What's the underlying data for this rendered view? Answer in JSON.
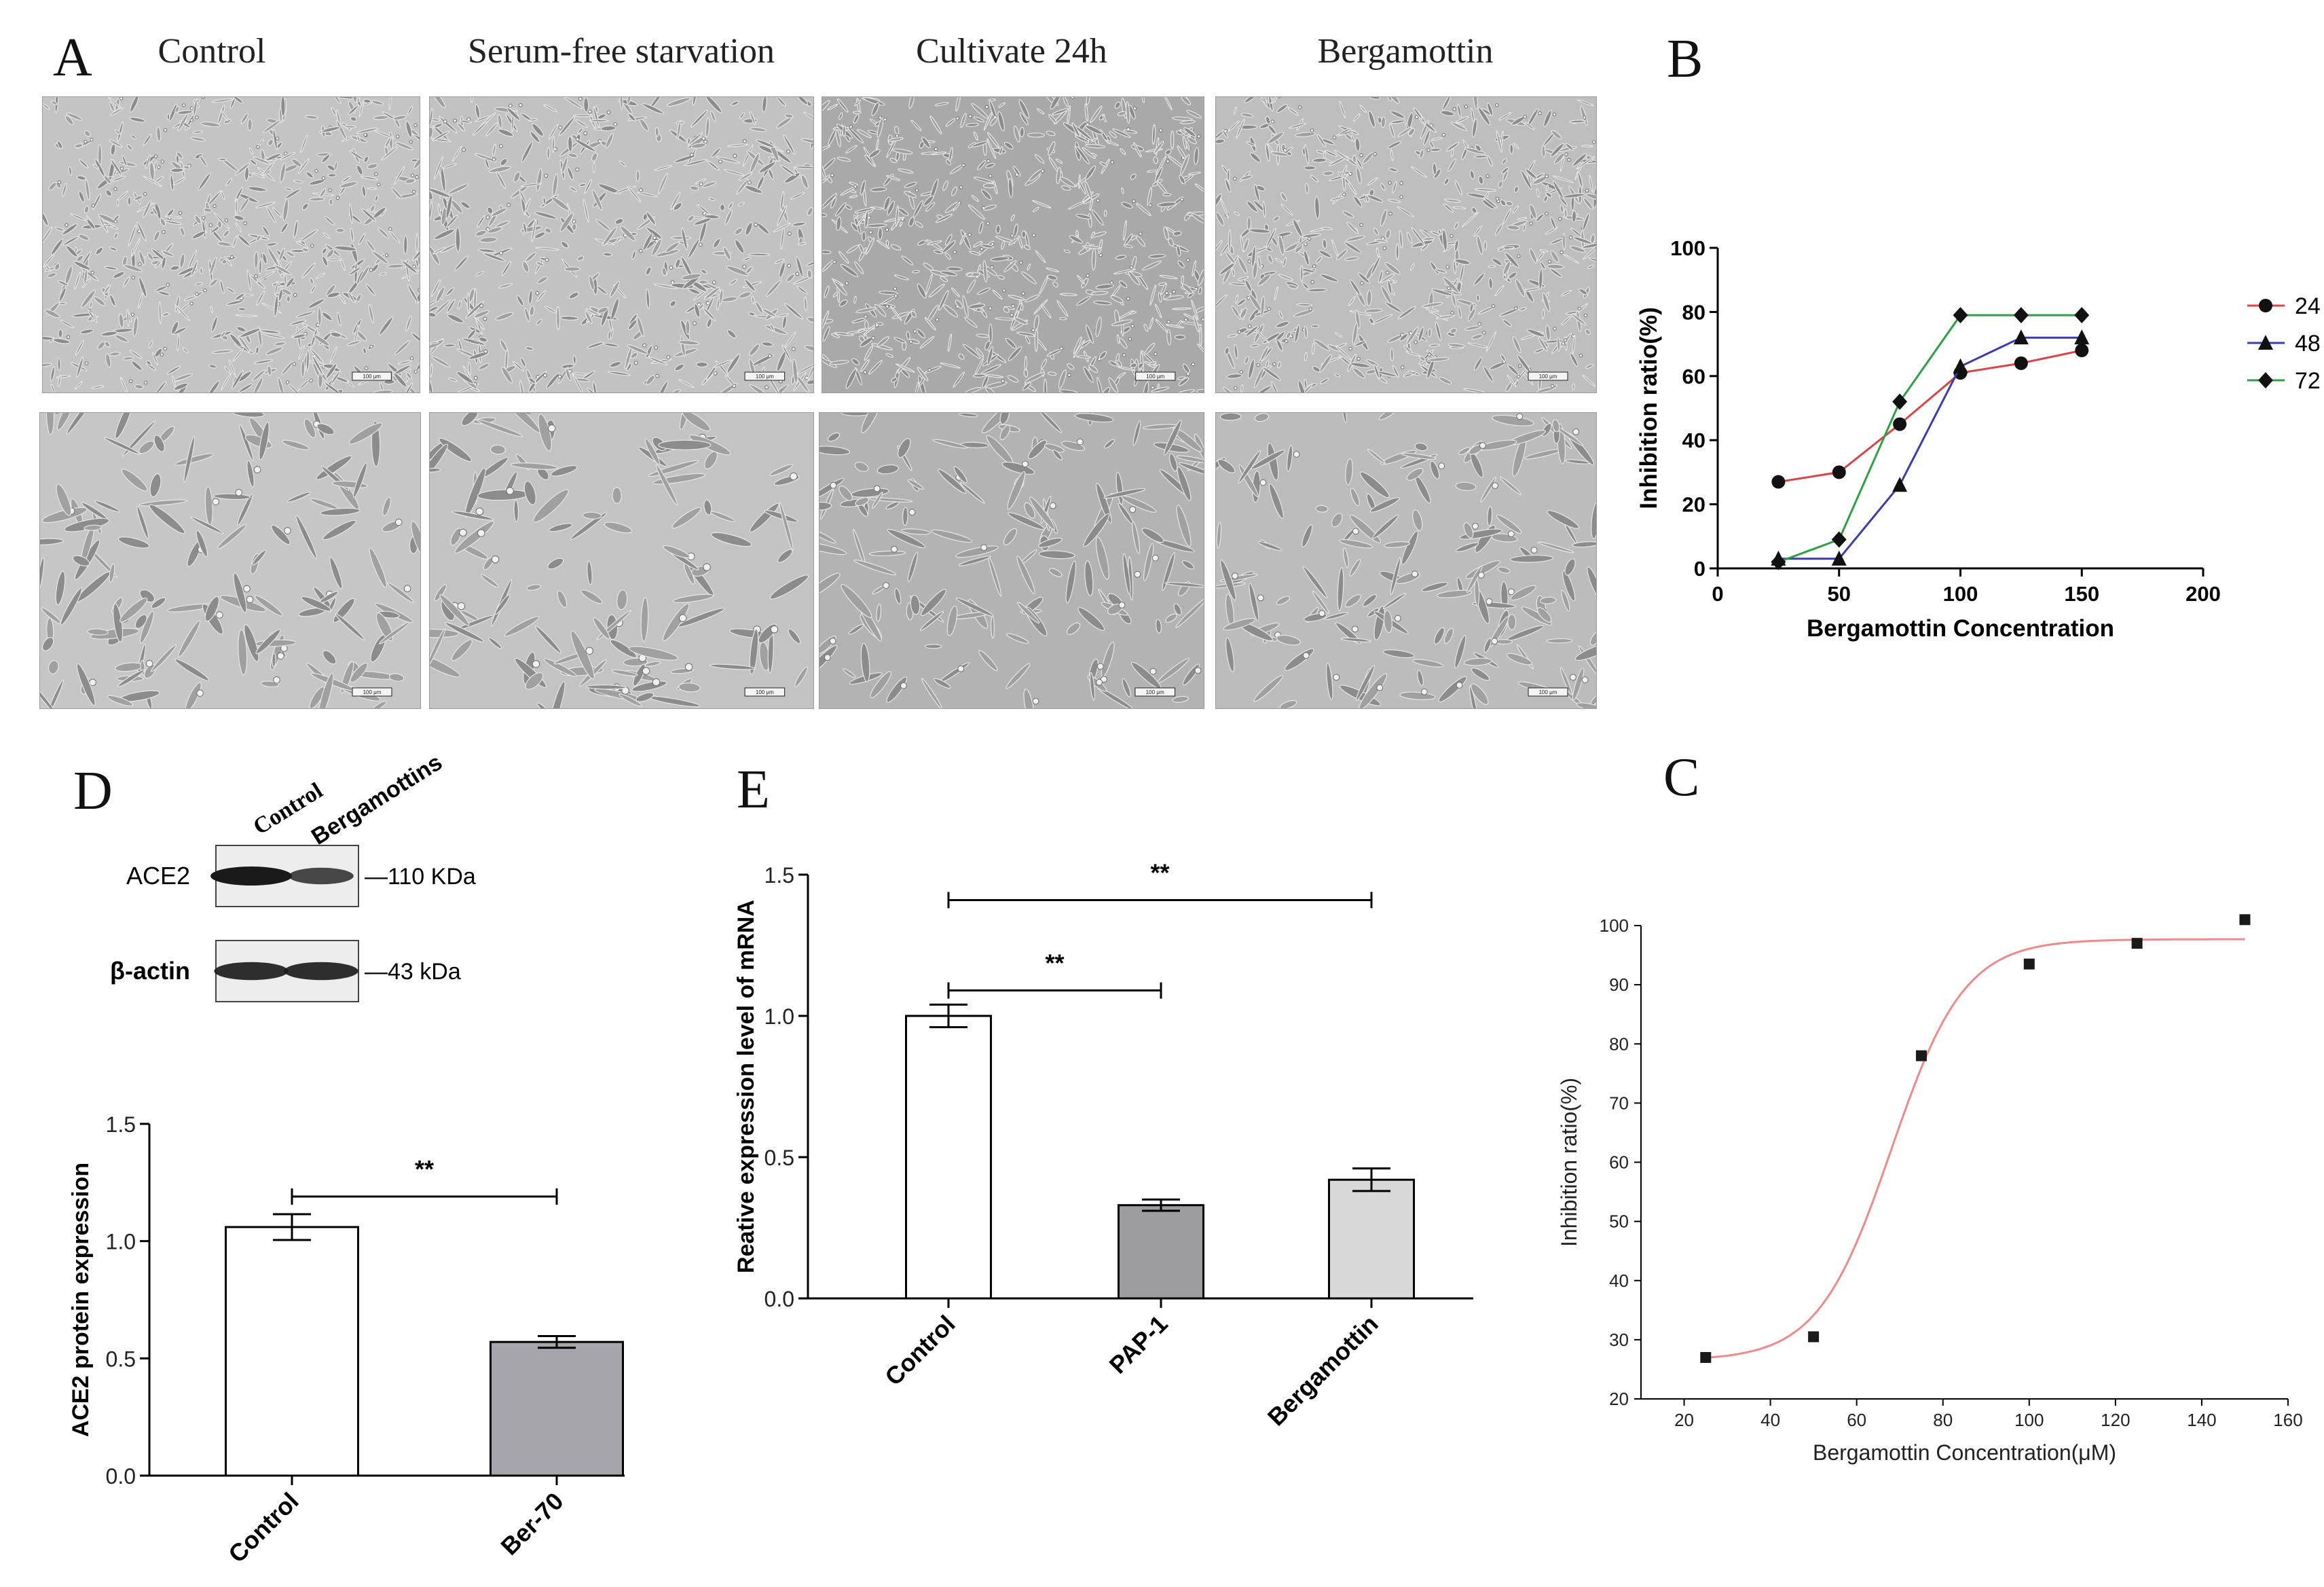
{
  "panel_letters": {
    "a": "A",
    "b": "B",
    "c": "C",
    "d": "D",
    "e": "E"
  },
  "panel_a": {
    "column_titles": [
      "Control",
      "Serum-free starvation",
      "Cultivate 24h",
      "Bergamottin"
    ],
    "scale_bar_label": "100 μm"
  },
  "western_blot": {
    "lane_labels": [
      "Control",
      "Bergamottins"
    ],
    "rows": [
      {
        "name": "ACE2",
        "size_label": "—110 KDa",
        "band_intensity": [
          1.0,
          0.55
        ]
      },
      {
        "name": "β-actin",
        "size_label": "—43 kDa",
        "band_intensity": [
          0.8,
          0.8
        ]
      }
    ]
  },
  "chart_data": [
    {
      "panel": "B",
      "type": "line",
      "xlabel": "Bergamottin Concentration",
      "ylabel": "Inhibition ratio(%)",
      "xlim": [
        0,
        200
      ],
      "ylim": [
        0,
        100
      ],
      "xticks": [
        0,
        50,
        100,
        150,
        200
      ],
      "yticks": [
        0,
        20,
        40,
        60,
        80,
        100
      ],
      "legend_position": "right",
      "series": [
        {
          "name": "24",
          "color": "#d94545",
          "marker": "circle",
          "x": [
            25,
            50,
            75,
            100,
            125,
            150
          ],
          "y": [
            27,
            30,
            45,
            61,
            64,
            68
          ]
        },
        {
          "name": "48",
          "color": "#3b3bb0",
          "marker": "triangle",
          "x": [
            25,
            50,
            75,
            100,
            125,
            150
          ],
          "y": [
            3,
            3,
            26,
            63,
            72,
            72
          ]
        },
        {
          "name": "72",
          "color": "#2ea043",
          "marker": "diamond",
          "x": [
            25,
            50,
            75,
            100,
            125,
            150
          ],
          "y": [
            2,
            9,
            52,
            79,
            79,
            79
          ]
        }
      ]
    },
    {
      "panel": "C",
      "type": "scatter",
      "xlabel": "Bergamottin Concentration(μM)",
      "ylabel": "Inhibition ratio(%)",
      "xlim": [
        10,
        160
      ],
      "ylim": [
        20,
        100
      ],
      "xticks": [
        20,
        40,
        60,
        80,
        100,
        120,
        140,
        160
      ],
      "yticks": [
        20,
        30,
        40,
        50,
        60,
        70,
        80,
        90,
        100
      ],
      "points": {
        "x": [
          25,
          50,
          75,
          100,
          125,
          150
        ],
        "y": [
          27,
          30.5,
          78,
          93.5,
          97,
          101
        ]
      },
      "fit": {
        "color": "#f08a8a",
        "model": "logistic",
        "bottom": 26.5,
        "top": 97.7,
        "x50": 68,
        "slope": 8.5
      }
    },
    {
      "panel": "D",
      "type": "bar",
      "ylabel": "ACE2  protein expression",
      "ylim": [
        0,
        1.5
      ],
      "yticks": [
        "0.0",
        "0.5",
        "1.0",
        "1.5"
      ],
      "categories": [
        "Control",
        "Ber-70"
      ],
      "values": [
        1.06,
        0.57
      ],
      "errors": [
        0.055,
        0.025
      ],
      "fills": [
        "#ffffff",
        "#a5a5ab"
      ],
      "significance": [
        {
          "from": 0,
          "to": 1,
          "label": "**",
          "y": 1.19
        }
      ]
    },
    {
      "panel": "E",
      "type": "bar",
      "ylabel": "Reative expression level of mRNA",
      "ylim": [
        0,
        1.5
      ],
      "yticks": [
        "0.0",
        "0.5",
        "1.0",
        "1.5"
      ],
      "categories": [
        "Control",
        "PAP-1",
        "Bergamottin"
      ],
      "values": [
        1.0,
        0.33,
        0.42
      ],
      "errors": [
        0.04,
        0.02,
        0.04
      ],
      "fills": [
        "#ffffff",
        "#9d9da1",
        "#d8d8d8"
      ],
      "significance": [
        {
          "from": 0,
          "to": 1,
          "label": "**",
          "y": 1.09
        },
        {
          "from": 0,
          "to": 2,
          "label": "**",
          "y": 1.41
        }
      ]
    }
  ]
}
